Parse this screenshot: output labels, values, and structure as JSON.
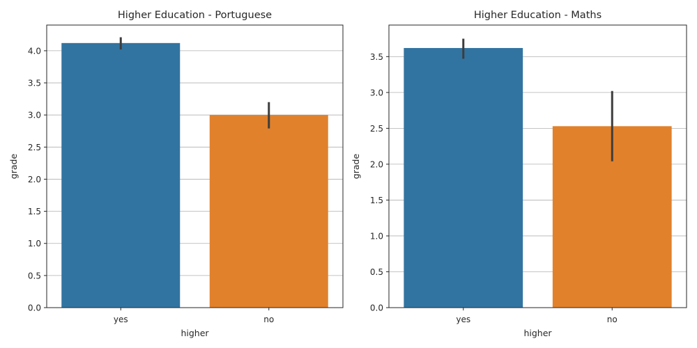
{
  "chart_data": [
    {
      "type": "bar",
      "title": "Higher Education - Portuguese",
      "xlabel": "higher",
      "ylabel": "grade",
      "categories": [
        "yes",
        "no"
      ],
      "values": [
        4.12,
        3.0
      ],
      "error_low": [
        4.02,
        2.79
      ],
      "error_high": [
        4.21,
        3.2
      ],
      "colors": [
        "#3274a1",
        "#e1812c"
      ],
      "ylim": [
        0,
        4.4
      ],
      "yticks": [
        "0.0",
        "0.5",
        "1.0",
        "1.5",
        "2.0",
        "2.5",
        "3.0",
        "3.5",
        "4.0"
      ],
      "grid": "y"
    },
    {
      "type": "bar",
      "title": "Higher Education - Maths",
      "xlabel": "higher",
      "ylabel": "grade",
      "categories": [
        "yes",
        "no"
      ],
      "values": [
        3.62,
        2.53
      ],
      "error_low": [
        3.47,
        2.04
      ],
      "error_high": [
        3.75,
        3.02
      ],
      "colors": [
        "#3274a1",
        "#e1812c"
      ],
      "ylim": [
        0,
        3.94
      ],
      "yticks": [
        "0.0",
        "0.5",
        "1.0",
        "1.5",
        "2.0",
        "2.5",
        "3.0",
        "3.5"
      ],
      "grid": "y"
    }
  ]
}
